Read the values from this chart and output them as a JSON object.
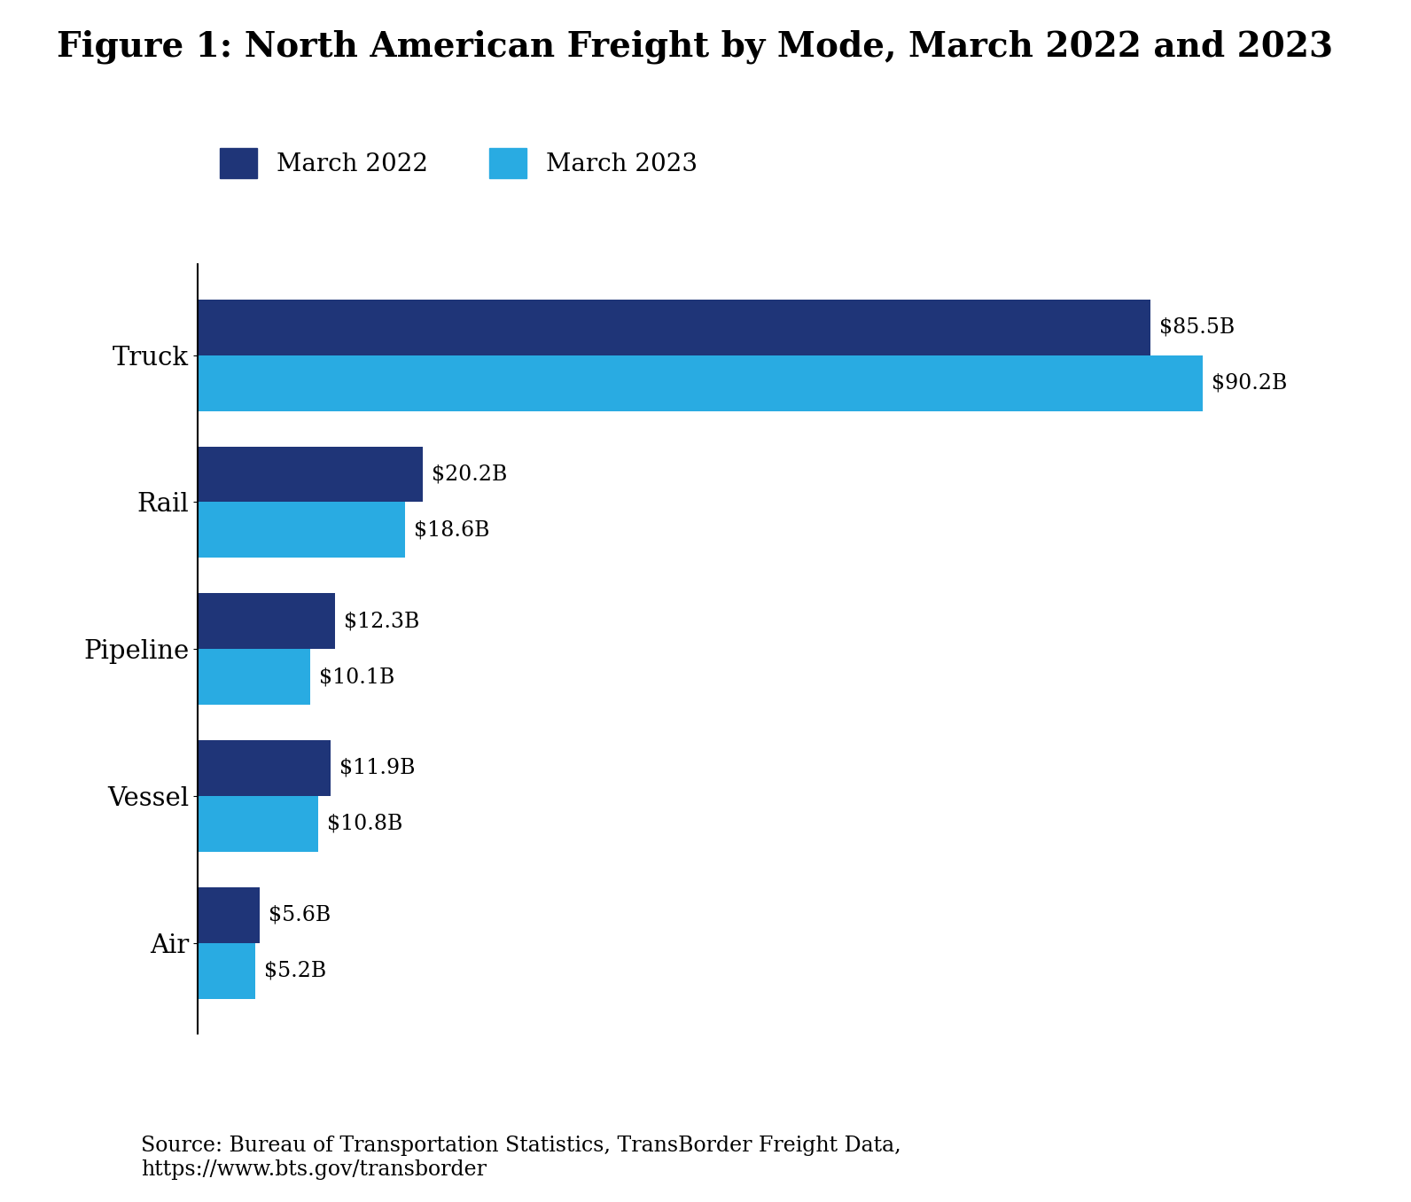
{
  "title": "Figure 1: North American Freight by Mode, March 2022 and 2023",
  "categories": [
    "Truck",
    "Rail",
    "Pipeline",
    "Vessel",
    "Air"
  ],
  "values_2022": [
    85.5,
    20.2,
    12.3,
    11.9,
    5.6
  ],
  "values_2023": [
    90.2,
    18.6,
    10.1,
    10.8,
    5.2
  ],
  "labels_2022": [
    "$85.5B",
    "$20.2B",
    "$12.3B",
    "$11.9B",
    "$5.6B"
  ],
  "labels_2023": [
    "$90.2B",
    "$18.6B",
    "$10.1B",
    "$10.8B",
    "$5.2B"
  ],
  "color_2022": "#1f3578",
  "color_2023": "#29abe2",
  "legend_2022": "March 2022",
  "legend_2023": "March 2023",
  "source_text": "Source: Bureau of Transportation Statistics, TransBorder Freight Data,\nhttps://www.bts.gov/transborder",
  "background_color": "#ffffff",
  "bar_height": 0.38,
  "xlim": [
    0,
    100
  ],
  "label_fontsize": 17,
  "tick_fontsize": 21,
  "title_fontsize": 28,
  "legend_fontsize": 20,
  "source_fontsize": 17
}
